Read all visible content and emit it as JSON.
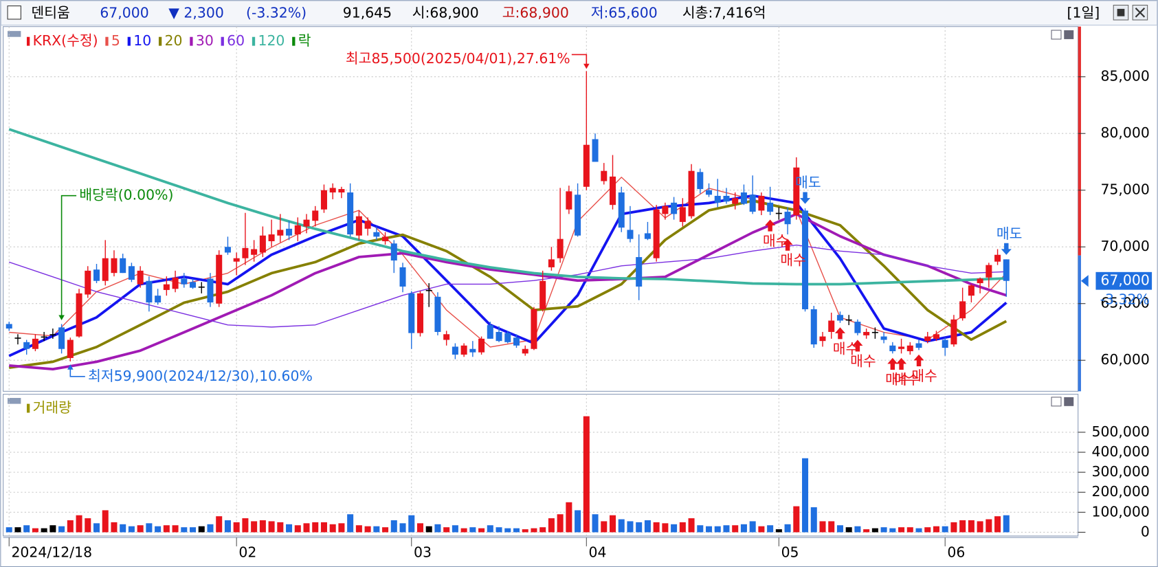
{
  "header": {
    "name": "덴티움",
    "price": "67,000",
    "change": "▼ 2,300",
    "change_rate": "(-3.32%)",
    "volume": "91,645",
    "open": "시:68,900",
    "high": "고:68,900",
    "low": "저:65,600",
    "market_cap": "시총:7,416억",
    "period": "[1일]"
  },
  "chart_data": [
    {
      "type": "candlestick",
      "name": "KRX(수정)",
      "up_color": "#e8141c",
      "down_color": "#1f6fe0",
      "flat_color": "#000000",
      "open": [
        63200,
        62000,
        61600,
        61000,
        62100,
        62300,
        62900,
        60200,
        62100,
        65800,
        68000,
        67000,
        67700,
        69000,
        68300,
        66700,
        67000,
        65700,
        66200,
        66300,
        67200,
        66900,
        66500,
        67200,
        65000,
        70000,
        68700,
        69000,
        69300,
        69500,
        70500,
        71000,
        71600,
        71100,
        71800,
        72300,
        73300,
        74800,
        74800,
        74800,
        71000,
        71600,
        71300,
        70500,
        70300,
        68200,
        65900,
        62400,
        66200,
        65600,
        61800,
        61200,
        60500,
        61000,
        60700,
        63100,
        62500,
        62400,
        62000,
        60600,
        61000,
        64500,
        68200,
        69000,
        73300,
        74600,
        75300,
        79500,
        75800,
        73700,
        74800,
        71500,
        69100,
        71200,
        69000,
        72900,
        73900,
        72200,
        72700,
        76600,
        75000,
        74500,
        74500,
        73800,
        74800,
        74600,
        73200,
        73900,
        73000,
        73100,
        72800,
        73200,
        64500,
        61700,
        62500,
        64000,
        63600,
        63400,
        62200,
        62500,
        62100,
        61300,
        61000,
        60800,
        61500,
        61700,
        61900,
        61800,
        61400,
        63700,
        65700,
        66800,
        67300,
        68700,
        68900
      ],
      "high": [
        63400,
        62300,
        61800,
        62300,
        62500,
        62800,
        63200,
        62000,
        66300,
        68300,
        68500,
        70600,
        69700,
        69400,
        68600,
        68300,
        67400,
        66300,
        67400,
        67900,
        67700,
        67200,
        66900,
        67700,
        69700,
        70900,
        69500,
        73000,
        70600,
        71800,
        72400,
        72900,
        72300,
        72600,
        72900,
        73600,
        75500,
        75600,
        75300,
        75600,
        73200,
        72600,
        71800,
        71300,
        70600,
        68600,
        66100,
        66100,
        66800,
        66000,
        62600,
        61500,
        61500,
        61700,
        62100,
        63400,
        63000,
        62600,
        62300,
        61300,
        64700,
        67900,
        70000,
        75200,
        75400,
        75600,
        85500,
        80000,
        77400,
        78100,
        75300,
        73600,
        71100,
        72200,
        73700,
        73900,
        74400,
        74300,
        77300,
        76900,
        75600,
        76000,
        75200,
        74800,
        75500,
        76300,
        74800,
        75300,
        73500,
        73500,
        77900,
        73400,
        64800,
        62500,
        64200,
        64300,
        64000,
        63600,
        62800,
        62900,
        62500,
        61600,
        61900,
        61600,
        61800,
        62500,
        62600,
        62000,
        64000,
        66400,
        66700,
        67300,
        68600,
        69800,
        68900
      ],
      "low": [
        62600,
        61400,
        60500,
        60800,
        61700,
        61900,
        60600,
        59900,
        62000,
        65500,
        66800,
        66600,
        67400,
        67700,
        66900,
        66400,
        64300,
        64900,
        65700,
        66000,
        66400,
        66300,
        65900,
        64700,
        64700,
        69300,
        67500,
        68400,
        68700,
        69100,
        70000,
        70400,
        70600,
        70500,
        71200,
        71800,
        73000,
        74200,
        74300,
        70900,
        70600,
        71000,
        70600,
        70200,
        67700,
        66000,
        61000,
        62100,
        64700,
        62200,
        61300,
        60100,
        60300,
        60300,
        60500,
        61900,
        61600,
        61500,
        61100,
        60400,
        60900,
        64300,
        67900,
        68600,
        72900,
        70900,
        75000,
        77500,
        75500,
        73300,
        71300,
        70400,
        65300,
        70600,
        68700,
        72400,
        72400,
        71800,
        72500,
        74700,
        74400,
        73500,
        73800,
        73300,
        73700,
        72900,
        72800,
        72800,
        72400,
        71100,
        72400,
        64300,
        61100,
        61200,
        61900,
        63300,
        63100,
        62200,
        61900,
        61900,
        61500,
        60600,
        60600,
        60500,
        60900,
        61500,
        61700,
        60400,
        61200,
        63500,
        65100,
        65900,
        66400,
        68400,
        65600
      ],
      "close": [
        62800,
        62000,
        61000,
        61900,
        62100,
        62300,
        61000,
        61800,
        65900,
        67900,
        67000,
        69000,
        69000,
        67700,
        67100,
        67900,
        65100,
        65100,
        66700,
        67300,
        66700,
        66400,
        66500,
        65100,
        69300,
        69500,
        69000,
        69900,
        69800,
        71000,
        71100,
        71500,
        71000,
        71900,
        72400,
        73200,
        75000,
        75200,
        75100,
        71100,
        72700,
        72300,
        70900,
        70900,
        68800,
        66500,
        62400,
        65900,
        66200,
        62500,
        62300,
        60500,
        61300,
        60700,
        61900,
        61900,
        61700,
        61600,
        61300,
        61000,
        64500,
        67000,
        68900,
        70700,
        74900,
        71000,
        79000,
        77500,
        76700,
        76200,
        71700,
        70700,
        66500,
        70700,
        73300,
        73600,
        72900,
        73500,
        76700,
        75100,
        74600,
        73900,
        74000,
        74300,
        73800,
        73100,
        74500,
        73100,
        73000,
        72000,
        77000,
        64500,
        61400,
        62100,
        63500,
        63500,
        63600,
        62400,
        62500,
        62500,
        61800,
        60800,
        61200,
        61300,
        61100,
        62100,
        62300,
        61100,
        63600,
        65200,
        66600,
        67200,
        68400,
        69300,
        67000
      ],
      "series": [
        {
          "name": "5",
          "color": "#e8504a",
          "width": 1.3,
          "x": [
            0,
            5,
            10,
            15,
            20,
            25,
            30,
            35,
            40,
            45,
            50,
            55,
            60,
            65,
            70,
            75,
            80,
            85,
            90,
            95,
            100,
            105,
            110,
            114
          ],
          "values": [
            62470,
            62150,
            66050,
            67680,
            66710,
            67680,
            69960,
            71910,
            73220,
            69310,
            64430,
            61170,
            61820,
            72240,
            76140,
            72560,
            75170,
            74190,
            73220,
            63780,
            62470,
            61820,
            64430,
            67680
          ]
        },
        {
          "name": "10",
          "color": "#1414f0",
          "width": 3.5,
          "x": [
            0,
            5,
            10,
            15,
            20,
            25,
            30,
            35,
            40,
            45,
            50,
            55,
            60,
            65,
            70,
            75,
            80,
            85,
            90,
            95,
            100,
            105,
            110,
            114
          ],
          "values": [
            60390,
            62150,
            63780,
            66710,
            67360,
            66710,
            69310,
            70940,
            72370,
            70940,
            67030,
            63120,
            61500,
            65730,
            72890,
            73540,
            73870,
            74520,
            73870,
            68980,
            62800,
            61690,
            62470,
            65080
          ]
        },
        {
          "name": "20",
          "color": "#858000",
          "width": 3.5,
          "x": [
            0,
            5,
            10,
            15,
            20,
            25,
            30,
            35,
            40,
            45,
            50,
            55,
            60,
            65,
            70,
            75,
            80,
            85,
            90,
            95,
            100,
            105,
            110,
            114
          ],
          "values": [
            59350,
            59870,
            61170,
            63120,
            65080,
            66050,
            67680,
            68660,
            70290,
            71070,
            69630,
            67360,
            64430,
            64750,
            66710,
            70610,
            73220,
            74060,
            73220,
            71910,
            68330,
            64430,
            61820,
            63450
          ]
        },
        {
          "name": "30",
          "color": "#a01ab4",
          "width": 3.5,
          "x": [
            0,
            5,
            10,
            15,
            20,
            25,
            30,
            35,
            40,
            45,
            50,
            55,
            60,
            65,
            70,
            75,
            80,
            85,
            90,
            95,
            100,
            105,
            110,
            114
          ],
          "values": [
            59540,
            59220,
            59870,
            60850,
            62470,
            64100,
            65730,
            67680,
            69110,
            69440,
            68660,
            68010,
            67550,
            67030,
            67160,
            67360,
            69310,
            71260,
            72890,
            70940,
            69310,
            68330,
            66710,
            65730
          ]
        },
        {
          "name": "60",
          "color": "#7a2ee0",
          "width": 1.3,
          "x": [
            0,
            5,
            10,
            15,
            20,
            25,
            30,
            35,
            40,
            45,
            50,
            55,
            60,
            65,
            70,
            75,
            80,
            85,
            90,
            95,
            100,
            105,
            110,
            114
          ],
          "values": [
            68660,
            67360,
            66050,
            65080,
            64100,
            63120,
            62930,
            63120,
            64430,
            65730,
            66710,
            66710,
            67030,
            67550,
            68330,
            68660,
            68980,
            69630,
            70160,
            69630,
            69310,
            68330,
            67680,
            67810
          ]
        },
        {
          "name": "120",
          "color": "#3cb4a0",
          "width": 3.5,
          "x": [
            0,
            5,
            10,
            15,
            20,
            25,
            30,
            35,
            40,
            45,
            50,
            55,
            60,
            65,
            70,
            75,
            80,
            85,
            90,
            95,
            100,
            105,
            110,
            114
          ],
          "values": [
            80380,
            79070,
            77770,
            76470,
            75170,
            73870,
            72690,
            71590,
            70610,
            69630,
            68850,
            68200,
            67680,
            67360,
            67230,
            67160,
            66970,
            66770,
            66710,
            66710,
            66840,
            66970,
            67100,
            67230
          ]
        }
      ],
      "xlim": [
        -0.34,
        122.2
      ],
      "xticks": [
        {
          "value": 0,
          "label": "2024/12/18"
        },
        {
          "value": 26,
          "label": "02"
        },
        {
          "value": 46,
          "label": "03"
        },
        {
          "value": 66,
          "label": "04"
        },
        {
          "value": 88,
          "label": "05"
        },
        {
          "value": 107,
          "label": "06"
        }
      ],
      "ylim": [
        57266,
        89427
      ],
      "yticks": [
        {
          "value": 60000,
          "label": "60,000"
        },
        {
          "value": 65000,
          "label": "65,000"
        },
        {
          "value": 70000,
          "label": "70,000"
        },
        {
          "value": 75000,
          "label": "75,000"
        },
        {
          "value": 80000,
          "label": "80,000"
        },
        {
          "value": 85000,
          "label": "85,000"
        }
      ],
      "grid": true,
      "last": {
        "value": 67000,
        "label": "67,000",
        "change": "-3.32%"
      },
      "annotations": [
        {
          "text": "최고85,500(2025/04/01),27.61%",
          "x": 66,
          "y": 85500,
          "color": "#e8141c"
        },
        {
          "text": "최저59,900(2024/12/30),10.60%",
          "x": 7,
          "y": 59900,
          "color": "#1f6fe0"
        }
      ],
      "dividend": {
        "legend": "락",
        "text": "배당락(0.00%)",
        "x": 6,
        "color": "#0a8a0a"
      },
      "signals": [
        {
          "label": "매수",
          "x": 87,
          "side": "buy"
        },
        {
          "label": "매수",
          "x": 89,
          "side": "buy"
        },
        {
          "label": "매수",
          "x": 95,
          "side": "buy"
        },
        {
          "label": "매수",
          "x": 97,
          "side": "buy"
        },
        {
          "label": "매수",
          "x": 101,
          "side": "buy"
        },
        {
          "label": "매수",
          "x": 102,
          "side": "buy"
        },
        {
          "label": "매수",
          "x": 104,
          "side": "buy"
        },
        {
          "label": "매도",
          "x": 91,
          "side": "sell"
        },
        {
          "label": "매도",
          "x": 114,
          "side": "sell"
        }
      ]
    },
    {
      "type": "bar",
      "name": "거래량",
      "color": "#9a9400",
      "values": [
        25000,
        25000,
        35000,
        20000,
        20000,
        35000,
        30000,
        60000,
        85000,
        70000,
        45000,
        110000,
        50000,
        40000,
        30000,
        35000,
        45000,
        30000,
        35000,
        35000,
        25000,
        25000,
        30000,
        40000,
        80000,
        60000,
        50000,
        70000,
        55000,
        60000,
        55000,
        50000,
        40000,
        35000,
        45000,
        50000,
        50000,
        40000,
        45000,
        90000,
        35000,
        30000,
        30000,
        25000,
        60000,
        45000,
        85000,
        45000,
        30000,
        40000,
        25000,
        35000,
        20000,
        25000,
        20000,
        35000,
        25000,
        20000,
        20000,
        15000,
        20000,
        25000,
        70000,
        90000,
        150000,
        110000,
        580000,
        90000,
        55000,
        85000,
        65000,
        55000,
        50000,
        60000,
        50000,
        45000,
        40000,
        50000,
        70000,
        35000,
        30000,
        30000,
        35000,
        35000,
        40000,
        55000,
        30000,
        35000,
        15000,
        40000,
        130000,
        370000,
        125000,
        55000,
        55000,
        35000,
        25000,
        30000,
        15000,
        20000,
        25000,
        20000,
        25000,
        25000,
        20000,
        25000,
        30000,
        30000,
        50000,
        60000,
        60000,
        55000,
        65000,
        80000,
        85000
      ],
      "ylim": [
        -18700,
        690000
      ],
      "yticks": [
        0,
        {
          "value": 100000,
          "label": "100,000"
        },
        {
          "value": 200000,
          "label": "200,000"
        },
        {
          "value": 300000,
          "label": "300,000"
        },
        {
          "value": 400000,
          "label": "400,000"
        },
        {
          "value": 500000,
          "label": "500,000"
        }
      ]
    }
  ]
}
